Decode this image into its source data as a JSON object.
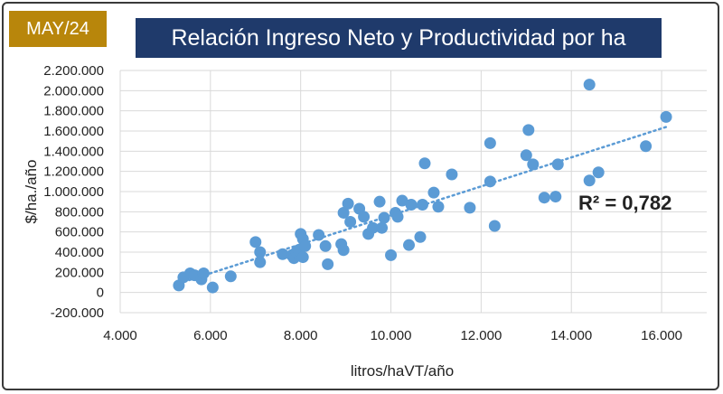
{
  "badge": {
    "text": "MAY/24",
    "color": "#b8860b"
  },
  "chart_data": {
    "type": "scatter",
    "title": "Relación Ingreso Neto y Productividad por ha",
    "xlabel": "litros/haVT/año",
    "ylabel": "$/ha./año",
    "xlim": [
      4000,
      17000
    ],
    "ylim": [
      -200000,
      2200000
    ],
    "x_ticks": [
      4000,
      6000,
      8000,
      10000,
      12000,
      14000,
      16000
    ],
    "x_tick_labels": [
      "4.000",
      "6.000",
      "8.000",
      "10.000",
      "12.000",
      "14.000",
      "16.000"
    ],
    "y_ticks": [
      -200000,
      0,
      200000,
      400000,
      600000,
      800000,
      1000000,
      1200000,
      1400000,
      1600000,
      1800000,
      2000000,
      2200000
    ],
    "y_tick_labels": [
      "-200.000",
      "0",
      "200.000",
      "400.000",
      "600.000",
      "800.000",
      "1.000.000",
      "1.200.000",
      "1.400.000",
      "1.600.000",
      "1.800.000",
      "2.000.000",
      "2.200.000"
    ],
    "grid": true,
    "point_color": "#5b9bd5",
    "title_bg_color": "#1f3a6b",
    "trendline": {
      "type": "linear",
      "style": "dotted",
      "from": [
        5300,
        90000
      ],
      "to": [
        16100,
        1640000
      ]
    },
    "annotation": "R² = 0,782",
    "points": [
      [
        5300,
        70000
      ],
      [
        5400,
        150000
      ],
      [
        5550,
        190000
      ],
      [
        5650,
        170000
      ],
      [
        5800,
        130000
      ],
      [
        5850,
        190000
      ],
      [
        6050,
        50000
      ],
      [
        6450,
        160000
      ],
      [
        7000,
        500000
      ],
      [
        7100,
        400000
      ],
      [
        7100,
        300000
      ],
      [
        7600,
        380000
      ],
      [
        7800,
        370000
      ],
      [
        7850,
        340000
      ],
      [
        7900,
        400000
      ],
      [
        7950,
        420000
      ],
      [
        8000,
        580000
      ],
      [
        8050,
        350000
      ],
      [
        8050,
        530000
      ],
      [
        8100,
        460000
      ],
      [
        8400,
        570000
      ],
      [
        8550,
        460000
      ],
      [
        8600,
        280000
      ],
      [
        8900,
        480000
      ],
      [
        8950,
        420000
      ],
      [
        8950,
        790000
      ],
      [
        9050,
        880000
      ],
      [
        9100,
        700000
      ],
      [
        9300,
        830000
      ],
      [
        9400,
        750000
      ],
      [
        9500,
        580000
      ],
      [
        9600,
        640000
      ],
      [
        9750,
        900000
      ],
      [
        9800,
        640000
      ],
      [
        9850,
        740000
      ],
      [
        10000,
        370000
      ],
      [
        10100,
        790000
      ],
      [
        10150,
        750000
      ],
      [
        10250,
        910000
      ],
      [
        10450,
        870000
      ],
      [
        10400,
        470000
      ],
      [
        10650,
        550000
      ],
      [
        10700,
        870000
      ],
      [
        10750,
        1280000
      ],
      [
        10950,
        990000
      ],
      [
        11050,
        850000
      ],
      [
        11350,
        1170000
      ],
      [
        11750,
        840000
      ],
      [
        12200,
        1480000
      ],
      [
        12200,
        1100000
      ],
      [
        12300,
        660000
      ],
      [
        13000,
        1360000
      ],
      [
        13050,
        1610000
      ],
      [
        13150,
        1270000
      ],
      [
        13400,
        940000
      ],
      [
        13650,
        950000
      ],
      [
        13700,
        1270000
      ],
      [
        14400,
        2060000
      ],
      [
        14400,
        1110000
      ],
      [
        14600,
        1190000
      ],
      [
        15650,
        1450000
      ],
      [
        16100,
        1740000
      ]
    ]
  }
}
